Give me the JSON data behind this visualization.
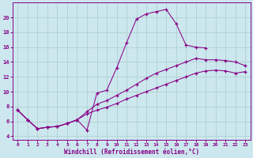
{
  "xlabel": "Windchill (Refroidissement éolien,°C)",
  "bg_color": "#cce8ee",
  "line_color": "#880088",
  "grid_color": "#aacccc",
  "xlim": [
    -0.5,
    23.5
  ],
  "ylim": [
    3.5,
    22.0
  ],
  "yticks": [
    4,
    6,
    8,
    10,
    12,
    14,
    16,
    18,
    20
  ],
  "xticks": [
    0,
    1,
    2,
    3,
    4,
    5,
    6,
    7,
    8,
    9,
    10,
    11,
    12,
    13,
    14,
    15,
    16,
    17,
    18,
    19,
    20,
    21,
    22,
    23
  ],
  "series1_x": [
    0,
    1,
    2,
    3,
    4,
    5,
    6,
    7,
    8,
    9,
    10,
    11,
    12,
    13,
    14,
    15,
    16,
    17,
    18,
    19
  ],
  "series1_y": [
    7.5,
    6.2,
    5.0,
    5.2,
    5.3,
    5.7,
    6.2,
    4.8,
    9.8,
    10.2,
    13.2,
    16.6,
    19.8,
    20.5,
    20.8,
    21.1,
    19.2,
    16.3,
    16.0,
    15.9
  ],
  "series2_x": [
    0,
    1,
    2,
    3,
    4,
    5,
    6,
    7,
    8,
    9,
    10,
    11,
    12,
    13,
    14,
    15,
    16,
    17,
    18,
    19,
    20,
    21,
    22,
    23
  ],
  "series2_y": [
    7.5,
    6.2,
    5.0,
    5.2,
    5.3,
    5.7,
    6.2,
    7.3,
    8.3,
    8.8,
    9.5,
    10.2,
    11.0,
    11.8,
    12.5,
    13.0,
    13.5,
    14.0,
    14.5,
    14.3,
    14.3,
    14.2,
    14.0,
    13.5
  ],
  "series3_x": [
    0,
    1,
    2,
    3,
    4,
    5,
    6,
    7,
    8,
    9,
    10,
    11,
    12,
    13,
    14,
    15,
    16,
    17,
    18,
    19,
    20,
    21,
    22,
    23
  ],
  "series3_y": [
    7.5,
    6.2,
    5.0,
    5.2,
    5.3,
    5.7,
    6.2,
    7.0,
    7.5,
    7.9,
    8.4,
    9.0,
    9.5,
    10.0,
    10.5,
    11.0,
    11.5,
    12.0,
    12.5,
    12.8,
    12.9,
    12.8,
    12.5,
    12.7
  ]
}
